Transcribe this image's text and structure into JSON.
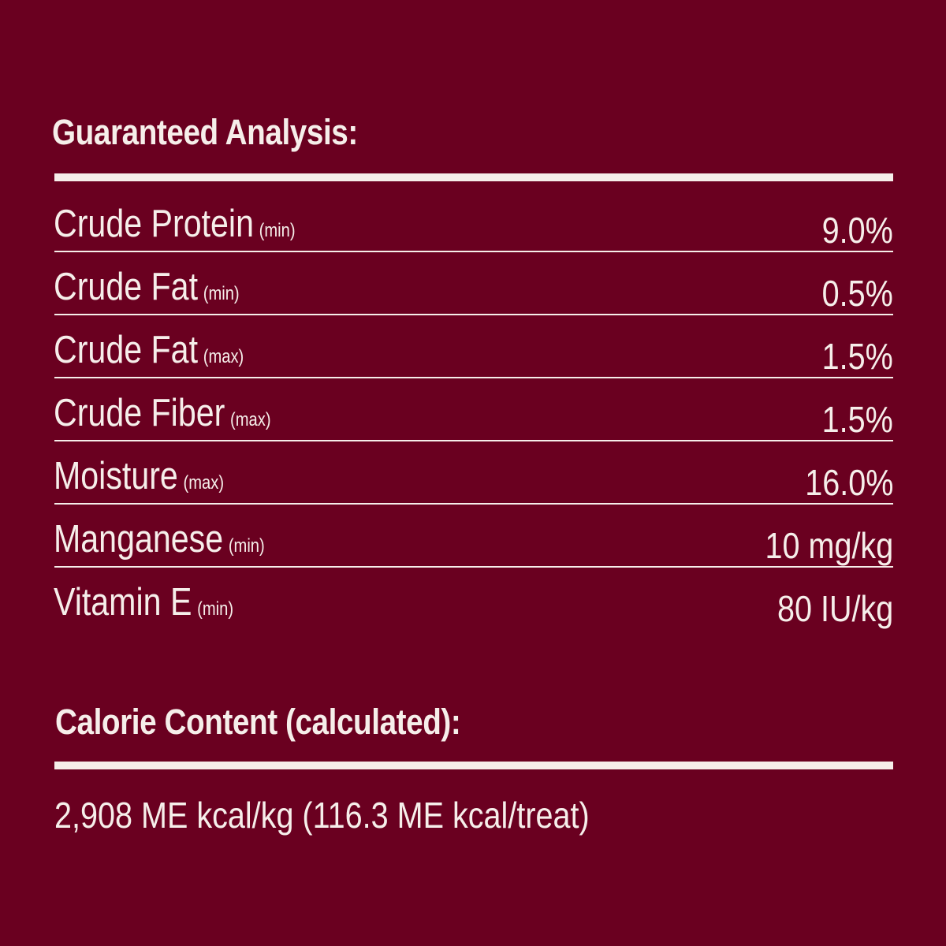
{
  "guaranteed_analysis": {
    "title": "Guaranteed Analysis:",
    "rows": [
      {
        "name": "Crude Protein",
        "qualifier": "(min)",
        "value": "9.0%"
      },
      {
        "name": "Crude Fat",
        "qualifier": "(min)",
        "value": "0.5%"
      },
      {
        "name": "Crude Fat",
        "qualifier": "(max)",
        "value": "1.5%"
      },
      {
        "name": "Crude Fiber",
        "qualifier": "(max)",
        "value": "1.5%"
      },
      {
        "name": "Moisture",
        "qualifier": "(max)",
        "value": "16.0%"
      },
      {
        "name": "Manganese",
        "qualifier": "(min)",
        "value": "10 mg/kg"
      },
      {
        "name": "Vitamin E",
        "qualifier": "(min)",
        "value": "80 IU/kg"
      }
    ]
  },
  "calorie_content": {
    "title": "Calorie Content (calculated):",
    "value": "2,908 ME kcal/kg (116.3 ME kcal/treat)"
  },
  "colors": {
    "background": "#6a0020",
    "text": "#f6eeea"
  }
}
